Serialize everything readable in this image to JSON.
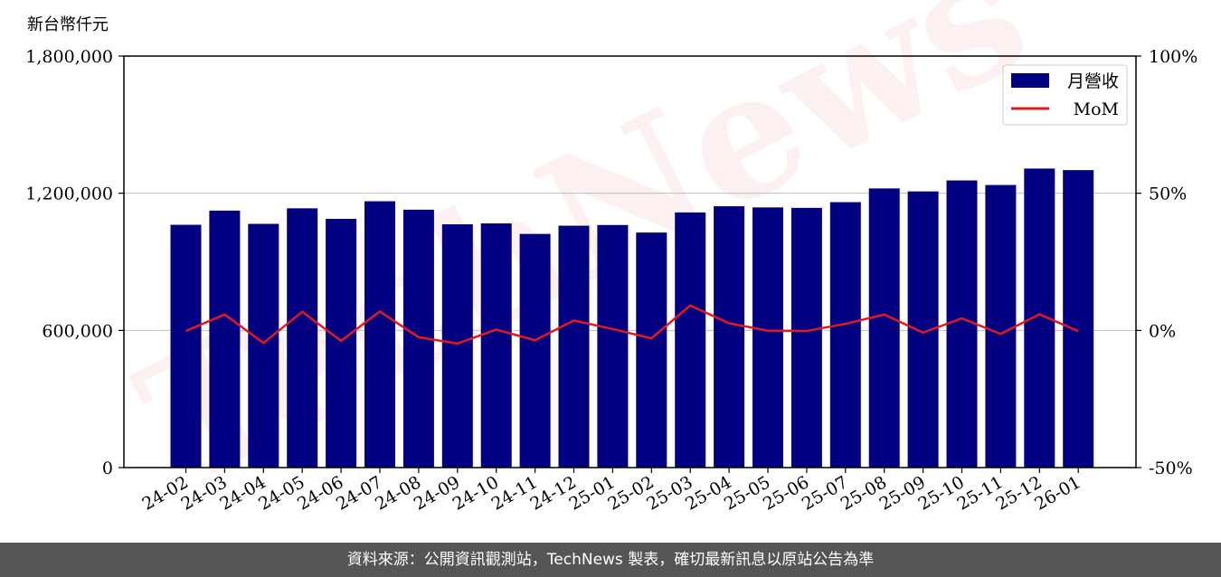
{
  "chart_data": {
    "type": "bar+line",
    "unit_label": "新台幣仟元",
    "categories": [
      "24-02",
      "24-03",
      "24-04",
      "24-05",
      "24-06",
      "24-07",
      "24-08",
      "24-09",
      "24-10",
      "24-11",
      "24-12",
      "25-01",
      "25-02",
      "25-03",
      "25-04",
      "25-05",
      "25-06",
      "25-07",
      "25-08",
      "25-09",
      "25-10",
      "25-11",
      "25-12",
      "26-01"
    ],
    "series": [
      {
        "name": "月營收",
        "type": "bar",
        "axis": "left",
        "color": "#000080",
        "values": [
          1062000,
          1124000,
          1066000,
          1134000,
          1088000,
          1165000,
          1128000,
          1064000,
          1068000,
          1022000,
          1058000,
          1061000,
          1028000,
          1116000,
          1143000,
          1138000,
          1136000,
          1161000,
          1221000,
          1208000,
          1256000,
          1236000,
          1308000,
          1301000
        ]
      },
      {
        "name": "MoM",
        "type": "line",
        "axis": "right",
        "color": "#e31a1c",
        "values": [
          -0.2,
          5.8,
          -4.6,
          6.8,
          -3.8,
          6.9,
          -2.5,
          -4.8,
          0.3,
          -3.6,
          3.6,
          0.5,
          -2.9,
          9.1,
          2.6,
          -0.1,
          -0.2,
          2.4,
          5.8,
          -0.8,
          4.4,
          -1.3,
          5.9,
          -0.3
        ]
      }
    ],
    "y_left": {
      "ticks": [
        "0",
        "600,000",
        "1,200,000",
        "1,800,000"
      ],
      "tick_values": [
        0,
        600000,
        1200000,
        1800000
      ],
      "ylim": [
        0,
        1800000
      ]
    },
    "y_right": {
      "ticks": [
        "-50%",
        "0%",
        "50%",
        "100%"
      ],
      "tick_values": [
        -50,
        0,
        50,
        100
      ],
      "ylim": [
        -50,
        100
      ]
    },
    "grid": "horizontal",
    "legend_position": "top-right",
    "watermark": "TechNews"
  },
  "footer": {
    "text": "資料來源：公開資訊觀測站，TechNews 製表，確切最新訊息以原站公告為準"
  }
}
